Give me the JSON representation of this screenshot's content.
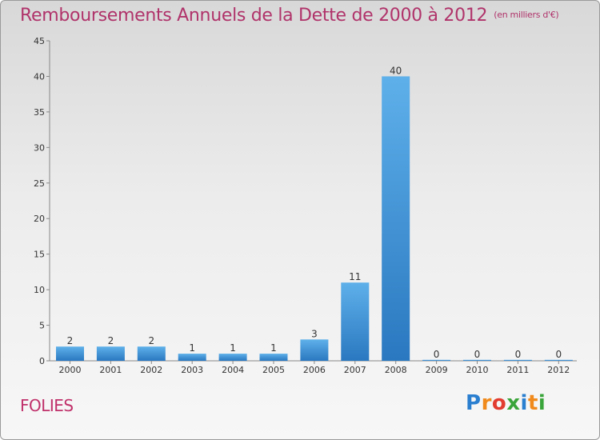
{
  "chart_data": {
    "type": "bar",
    "title": "Remboursements Annuels de la Dette de 2000 à 2012",
    "unit": "(en milliers d'€)",
    "categories": [
      "2000",
      "2001",
      "2002",
      "2003",
      "2004",
      "2005",
      "2006",
      "2007",
      "2008",
      "2009",
      "2010",
      "2011",
      "2012"
    ],
    "values": [
      2,
      2,
      2,
      1,
      1,
      1,
      3,
      11,
      40,
      0,
      0,
      0,
      0
    ],
    "ylim": [
      0,
      45
    ],
    "yticks": [
      0,
      5,
      10,
      15,
      20,
      25,
      30,
      35,
      40,
      45
    ],
    "xlabel": "",
    "ylabel": "",
    "grid": false,
    "bar_color": "#3a8fd6"
  },
  "commune": "FOLIES",
  "logo": {
    "text": "Proxiti",
    "letters": [
      "P",
      "r",
      "o",
      "x",
      "i",
      "t",
      "i"
    ],
    "colors": [
      "#2a7fd0",
      "#f08a1c",
      "#e23b2f",
      "#3aa53a",
      "#2a7fd0",
      "#f08a1c",
      "#3aa53a"
    ]
  }
}
